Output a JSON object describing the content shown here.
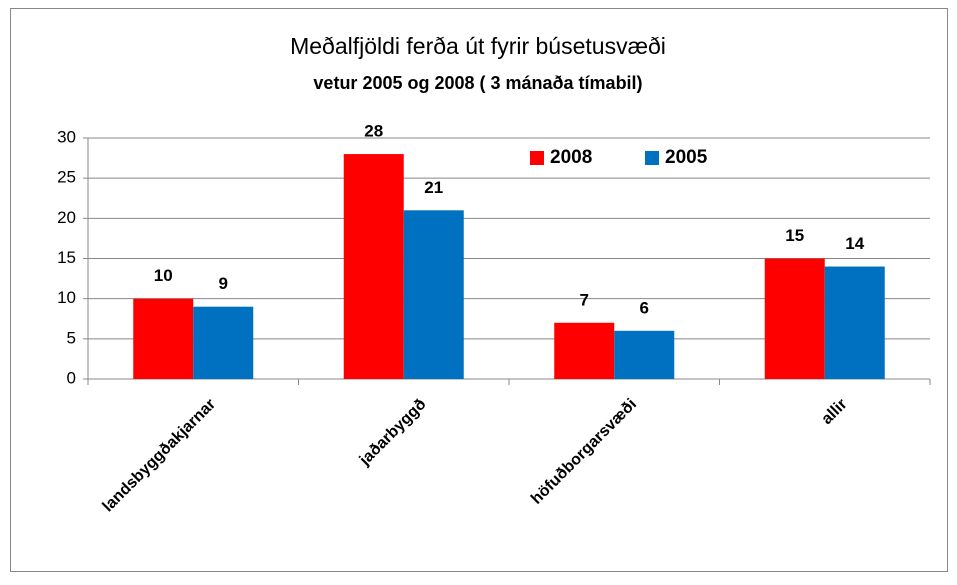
{
  "chart_data": {
    "type": "bar",
    "title": "Meðalfjöldi ferða út fyrir búsetusvæði",
    "subtitle": "vetur 2005 og 2008 ( 3 mánaða tímabil)",
    "categories": [
      "landsbyggðakjarnar",
      "jaðarbyggð",
      "höfuðborgarsvæði",
      "allir"
    ],
    "series": [
      {
        "name": "2008",
        "color": "#ff0000",
        "values": [
          10,
          28,
          7,
          15
        ]
      },
      {
        "name": "2005",
        "color": "#0070c0",
        "values": [
          9,
          21,
          6,
          14
        ]
      }
    ],
    "ylim": [
      0,
      30
    ],
    "yticks": [
      0,
      5,
      10,
      15,
      20,
      25,
      30
    ],
    "grid": true,
    "legend": "top-right"
  }
}
